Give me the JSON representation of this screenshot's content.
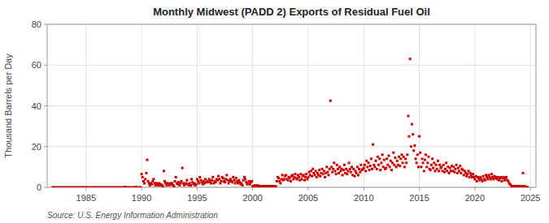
{
  "chart_data": {
    "type": "scatter",
    "title": "Monthly Midwest (PADD 2) Exports of Residual Fuel Oil",
    "y_label": "Thousand Barrels per Day",
    "source": "Source: U.S. Energy Information Administration",
    "color": "#CC0000",
    "marker": "square",
    "grid": true,
    "xlim": [
      1981.5,
      2025.5
    ],
    "ylim": [
      0,
      80
    ],
    "xticks": [
      1985,
      1990,
      1995,
      2000,
      2005,
      2010,
      2015,
      2020,
      2025
    ],
    "yticks": [
      0,
      20,
      40,
      60,
      80
    ],
    "x": [
      1982.0,
      1982.1,
      1982.3,
      1982.5,
      1982.7,
      1982.9,
      1983.1,
      1983.3,
      1983.5,
      1983.7,
      1983.9,
      1984.1,
      1984.3,
      1984.5,
      1984.7,
      1984.9,
      1985.1,
      1985.3,
      1985.5,
      1985.7,
      1985.9,
      1986.1,
      1986.3,
      1986.5,
      1986.7,
      1986.9,
      1987.1,
      1987.3,
      1987.5,
      1987.7,
      1987.9,
      1988.1,
      1988.3,
      1988.5,
      1988.7,
      1988.9,
      1989.1,
      1989.3,
      1989.5,
      1989.7,
      1989.9,
      1990.0,
      1990.08,
      1990.17,
      1990.25,
      1990.33,
      1990.42,
      1990.5,
      1990.58,
      1990.67,
      1990.75,
      1990.83,
      1990.92,
      1991.0,
      1991.08,
      1991.17,
      1991.25,
      1991.33,
      1991.42,
      1991.5,
      1991.58,
      1991.67,
      1991.75,
      1991.83,
      1991.92,
      1992.0,
      1992.08,
      1992.17,
      1992.25,
      1992.33,
      1992.42,
      1992.5,
      1992.58,
      1992.67,
      1992.75,
      1992.83,
      1992.92,
      1993.0,
      1993.08,
      1993.17,
      1993.25,
      1993.33,
      1993.42,
      1993.5,
      1993.58,
      1993.67,
      1993.75,
      1993.83,
      1993.92,
      1994.0,
      1994.08,
      1994.17,
      1994.25,
      1994.33,
      1994.42,
      1994.5,
      1994.58,
      1994.67,
      1994.75,
      1994.83,
      1994.92,
      1995.0,
      1995.08,
      1995.17,
      1995.25,
      1995.33,
      1995.42,
      1995.5,
      1995.58,
      1995.67,
      1995.75,
      1995.83,
      1995.92,
      1996.0,
      1996.08,
      1996.17,
      1996.25,
      1996.33,
      1996.42,
      1996.5,
      1996.58,
      1996.67,
      1996.75,
      1996.83,
      1996.92,
      1997.0,
      1997.08,
      1997.17,
      1997.25,
      1997.33,
      1997.42,
      1997.5,
      1997.58,
      1997.67,
      1997.75,
      1997.83,
      1997.92,
      1998.0,
      1998.08,
      1998.17,
      1998.25,
      1998.33,
      1998.42,
      1998.5,
      1998.58,
      1998.67,
      1998.75,
      1998.83,
      1998.92,
      1999.0,
      1999.08,
      1999.17,
      1999.25,
      1999.33,
      1999.42,
      1999.5,
      1999.58,
      1999.67,
      1999.75,
      1999.83,
      1999.92,
      2000.0,
      2000.08,
      2000.17,
      2000.25,
      2000.33,
      2000.42,
      2000.5,
      2000.58,
      2000.67,
      2000.75,
      2000.83,
      2000.92,
      2001.0,
      2001.08,
      2001.17,
      2001.25,
      2001.33,
      2001.42,
      2001.5,
      2001.58,
      2001.67,
      2001.75,
      2001.83,
      2001.92,
      2002.0,
      2002.08,
      2002.17,
      2002.25,
      2002.33,
      2002.42,
      2002.5,
      2002.58,
      2002.67,
      2002.75,
      2002.83,
      2002.92,
      2003.0,
      2003.08,
      2003.17,
      2003.25,
      2003.33,
      2003.42,
      2003.5,
      2003.58,
      2003.67,
      2003.75,
      2003.83,
      2003.92,
      2004.0,
      2004.08,
      2004.17,
      2004.25,
      2004.33,
      2004.42,
      2004.5,
      2004.58,
      2004.67,
      2004.75,
      2004.83,
      2004.92,
      2005.0,
      2005.08,
      2005.17,
      2005.25,
      2005.33,
      2005.42,
      2005.5,
      2005.58,
      2005.67,
      2005.75,
      2005.83,
      2005.92,
      2006.0,
      2006.08,
      2006.17,
      2006.25,
      2006.33,
      2006.42,
      2006.5,
      2006.58,
      2006.67,
      2006.75,
      2006.83,
      2006.92,
      2007.0,
      2007.08,
      2007.17,
      2007.25,
      2007.33,
      2007.42,
      2007.5,
      2007.58,
      2007.67,
      2007.75,
      2007.83,
      2007.92,
      2008.0,
      2008.08,
      2008.17,
      2008.25,
      2008.33,
      2008.42,
      2008.5,
      2008.58,
      2008.67,
      2008.75,
      2008.83,
      2008.92,
      2009.0,
      2009.08,
      2009.17,
      2009.25,
      2009.33,
      2009.42,
      2009.5,
      2009.58,
      2009.67,
      2009.75,
      2009.83,
      2009.92,
      2010.0,
      2010.08,
      2010.17,
      2010.25,
      2010.33,
      2010.42,
      2010.5,
      2010.58,
      2010.67,
      2010.75,
      2010.83,
      2010.92,
      2011.0,
      2011.08,
      2011.17,
      2011.25,
      2011.33,
      2011.42,
      2011.5,
      2011.58,
      2011.67,
      2011.75,
      2011.83,
      2011.92,
      2012.0,
      2012.08,
      2012.17,
      2012.25,
      2012.33,
      2012.42,
      2012.5,
      2012.58,
      2012.67,
      2012.75,
      2012.83,
      2012.92,
      2013.0,
      2013.08,
      2013.17,
      2013.25,
      2013.33,
      2013.42,
      2013.5,
      2013.58,
      2013.67,
      2013.75,
      2013.83,
      2013.92,
      2014.0,
      2014.08,
      2014.17,
      2014.25,
      2014.33,
      2014.42,
      2014.5,
      2014.58,
      2014.67,
      2014.75,
      2014.83,
      2014.92,
      2015.0,
      2015.08,
      2015.17,
      2015.25,
      2015.33,
      2015.42,
      2015.5,
      2015.58,
      2015.67,
      2015.75,
      2015.83,
      2015.92,
      2016.0,
      2016.08,
      2016.17,
      2016.25,
      2016.33,
      2016.42,
      2016.5,
      2016.58,
      2016.67,
      2016.75,
      2016.83,
      2016.92,
      2017.0,
      2017.08,
      2017.17,
      2017.25,
      2017.33,
      2017.42,
      2017.5,
      2017.58,
      2017.67,
      2017.75,
      2017.83,
      2017.92,
      2018.0,
      2018.08,
      2018.17,
      2018.25,
      2018.33,
      2018.42,
      2018.5,
      2018.58,
      2018.67,
      2018.75,
      2018.83,
      2018.92,
      2019.0,
      2019.08,
      2019.17,
      2019.25,
      2019.33,
      2019.42,
      2019.5,
      2019.58,
      2019.67,
      2019.75,
      2019.83,
      2019.92,
      2020.0,
      2020.08,
      2020.17,
      2020.25,
      2020.33,
      2020.42,
      2020.5,
      2020.58,
      2020.67,
      2020.75,
      2020.83,
      2020.92,
      2021.0,
      2021.08,
      2021.17,
      2021.25,
      2021.33,
      2021.42,
      2021.5,
      2021.58,
      2021.67,
      2021.75,
      2021.83,
      2021.92,
      2022.0,
      2022.08,
      2022.17,
      2022.25,
      2022.33,
      2022.42,
      2022.5,
      2022.58,
      2022.67,
      2022.75,
      2022.83,
      2022.92,
      2023.0,
      2023.08,
      2023.17,
      2023.25,
      2023.33,
      2023.42,
      2023.5,
      2023.58,
      2023.67,
      2023.75,
      2023.83,
      2023.92,
      2024.0,
      2024.08,
      2024.17,
      2024.25,
      2024.33,
      2024.42,
      2024.5,
      2024.58,
      2024.67,
      2024.75
    ],
    "values": [
      0.0,
      0.0,
      0.0,
      0.0,
      0.0,
      0.0,
      0.0,
      0.0,
      0.0,
      0.0,
      0.0,
      0.0,
      0.0,
      0.0,
      0.0,
      0.0,
      0.0,
      0.0,
      0.0,
      0.0,
      0.0,
      0.0,
      0.0,
      0.0,
      0.0,
      0.0,
      0.0,
      0.0,
      0.0,
      0.0,
      0.0,
      0.0,
      0.0,
      0.2,
      0.0,
      0.0,
      0.0,
      0.0,
      0.2,
      0.0,
      0.0,
      6.5,
      5.0,
      3.0,
      2.0,
      4.0,
      7.0,
      13.5,
      3.0,
      2.0,
      1.0,
      2.0,
      1.5,
      3.0,
      4.0,
      2.0,
      1.0,
      2.0,
      1.5,
      1.0,
      2.0,
      1.0,
      1.5,
      1.0,
      0.5,
      8.0,
      3.0,
      2.0,
      1.0,
      2.0,
      1.5,
      1.0,
      2.0,
      1.5,
      2.0,
      1.0,
      0.5,
      3.0,
      5.0,
      2.0,
      1.5,
      2.5,
      1.0,
      2.0,
      3.0,
      9.5,
      2.0,
      1.0,
      1.5,
      2.0,
      3.5,
      1.5,
      1.0,
      2.0,
      1.0,
      4.0,
      2.5,
      1.5,
      2.0,
      1.0,
      1.5,
      4.0,
      3.0,
      2.0,
      5.0,
      3.5,
      2.5,
      1.5,
      3.0,
      2.0,
      4.0,
      2.5,
      3.0,
      2.5,
      4.0,
      3.0,
      2.0,
      3.5,
      5.0,
      2.0,
      3.0,
      2.5,
      4.0,
      3.5,
      5.5,
      4.0,
      2.0,
      3.0,
      5.0,
      4.5,
      3.0,
      2.5,
      4.0,
      6.0,
      3.5,
      2.0,
      3.0,
      4.0,
      3.0,
      2.5,
      5.0,
      3.5,
      2.0,
      4.5,
      3.0,
      2.0,
      3.5,
      2.5,
      1.5,
      2.0,
      1.0,
      3.5,
      5.0,
      4.0,
      2.5,
      1.5,
      2.0,
      3.0,
      1.5,
      2.5,
      3.0,
      0.5,
      0.5,
      1.0,
      0.5,
      0.5,
      1.0,
      0.5,
      0.5,
      0.5,
      0.5,
      0.5,
      0.5,
      0.5,
      0.5,
      0.5,
      0.5,
      0.5,
      0.5,
      0.5,
      0.5,
      0.5,
      0.5,
      0.5,
      0.5,
      0.5,
      0.5,
      3.0,
      5.0,
      4.5,
      3.0,
      2.0,
      4.0,
      6.0,
      3.5,
      4.0,
      5.5,
      6.0,
      4.0,
      3.5,
      5.0,
      4.5,
      3.0,
      5.5,
      6.0,
      4.0,
      5.0,
      6.5,
      4.5,
      4.0,
      6.0,
      5.0,
      3.5,
      6.5,
      4.0,
      5.5,
      6.0,
      3.5,
      5.0,
      6.5,
      4.0,
      5.0,
      7.5,
      6.0,
      8.0,
      5.5,
      9.0,
      7.0,
      6.0,
      8.0,
      5.0,
      7.0,
      6.0,
      8.5,
      5.5,
      7.0,
      9.0,
      6.5,
      8.0,
      5.0,
      7.0,
      10.0,
      7.5,
      6.0,
      9.0,
      42.5,
      10.0,
      7.5,
      9.0,
      12.0,
      8.0,
      6.5,
      11.0,
      9.0,
      7.0,
      10.0,
      8.0,
      9.0,
      6.0,
      8.5,
      11.0,
      7.0,
      9.0,
      6.5,
      8.0,
      12.0,
      9.0,
      7.5,
      10.0,
      6.0,
      9.0,
      5.5,
      8.0,
      7.0,
      10.0,
      6.0,
      9.0,
      7.5,
      11.0,
      8.5,
      9.0,
      9.5,
      11.0,
      8.0,
      13.0,
      10.0,
      12.0,
      8.5,
      10.5,
      14.0,
      9.0,
      21.0,
      11.0,
      10.0,
      13.0,
      9.0,
      15.0,
      11.0,
      14.0,
      8.5,
      12.0,
      16.0,
      10.0,
      13.5,
      9.0,
      9.5,
      14.0,
      11.0,
      15.5,
      10.0,
      13.0,
      8.5,
      12.0,
      17.0,
      11.0,
      14.5,
      10.0,
      13.0,
      11.0,
      15.0,
      10.5,
      14.0,
      16.0,
      12.0,
      15.0,
      10.0,
      14.0,
      12.0,
      16.0,
      35.0,
      25.0,
      63.0,
      20.0,
      31.0,
      26.0,
      18.0,
      20.5,
      14.0,
      12.0,
      16.0,
      10.0,
      25.0,
      17.0,
      10.0,
      14.0,
      12.0,
      8.0,
      13.5,
      16.0,
      10.0,
      12.0,
      15.0,
      9.0,
      8.5,
      11.0,
      14.0,
      9.5,
      12.0,
      8.0,
      11.0,
      9.0,
      13.0,
      8.0,
      11.0,
      9.5,
      10.0,
      8.0,
      11.0,
      7.5,
      9.0,
      12.0,
      8.0,
      10.0,
      7.0,
      9.5,
      8.0,
      10.5,
      8.0,
      10.0,
      7.5,
      9.0,
      11.0,
      7.0,
      9.5,
      8.0,
      10.5,
      7.0,
      9.0,
      8.5,
      6.0,
      8.0,
      7.0,
      5.5,
      6.5,
      8.0,
      5.0,
      7.0,
      6.0,
      5.0,
      6.5,
      5.0,
      4.0,
      5.5,
      3.0,
      5.0,
      4.5,
      3.5,
      5.0,
      4.0,
      3.0,
      5.5,
      4.0,
      3.5,
      6.0,
      5.0,
      4.0,
      6.0,
      5.0,
      4.0,
      6.5,
      5.0,
      4.0,
      5.5,
      4.5,
      5.0,
      4.0,
      5.0,
      3.5,
      4.5,
      5.0,
      3.0,
      4.5,
      5.0,
      3.5,
      4.5,
      5.0,
      3.5,
      3.0,
      2.0,
      1.5,
      1.0,
      0.5,
      0.5,
      0.5,
      0.5,
      0.5,
      0.5,
      0.5,
      0.5,
      0.5,
      0.5,
      0.5,
      0.5,
      7.0,
      0.5,
      0.5,
      0.0,
      0.0,
      0.0
    ]
  }
}
